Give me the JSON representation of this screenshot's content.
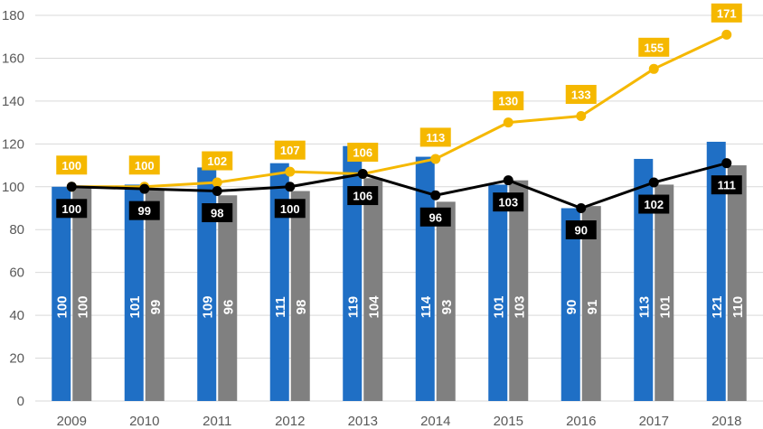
{
  "chart_data": {
    "type": "bar",
    "title": "",
    "xlabel": "",
    "ylabel": "",
    "ylim": [
      0,
      180
    ],
    "yticks": [
      0,
      20,
      40,
      60,
      80,
      100,
      120,
      140,
      160,
      180
    ],
    "grid": true,
    "categories": [
      "2009",
      "2010",
      "2011",
      "2012",
      "2013",
      "2014",
      "2015",
      "2016",
      "2017",
      "2018"
    ],
    "series": [
      {
        "name": "blue bars",
        "kind": "bar",
        "color": "#1f6fc5",
        "values": [
          100,
          101,
          109,
          111,
          119,
          114,
          101,
          90,
          113,
          121
        ]
      },
      {
        "name": "gray bars",
        "kind": "bar",
        "color": "#808080",
        "values": [
          100,
          99,
          96,
          98,
          104,
          93,
          103,
          91,
          101,
          110
        ]
      },
      {
        "name": "gold line",
        "kind": "line",
        "color": "#f5b800",
        "values": [
          100,
          100,
          102,
          107,
          106,
          113,
          130,
          133,
          155,
          171
        ]
      },
      {
        "name": "black line",
        "kind": "line",
        "color": "#000000",
        "values": [
          100,
          99,
          98,
          100,
          106,
          96,
          103,
          90,
          102,
          111
        ]
      }
    ]
  }
}
